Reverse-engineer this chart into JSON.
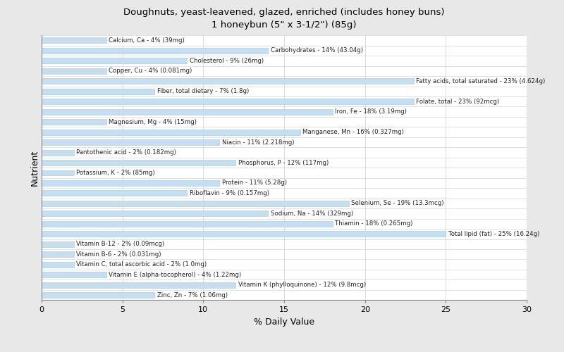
{
  "title": "Doughnuts, yeast-leavened, glazed, enriched (includes honey buns)\n1 honeybun (5\" x 3-1/2\") (85g)",
  "xlabel": "% Daily Value",
  "ylabel": "Nutrient",
  "xlim": [
    0,
    30
  ],
  "xticks": [
    0,
    5,
    10,
    15,
    20,
    25,
    30
  ],
  "bar_color": "#c5dff0",
  "bar_edge_color": "#a0c4e0",
  "background_color": "#e8e8e8",
  "plot_bg_color": "#ffffff",
  "nutrients": [
    {
      "label": "Calcium, Ca - 4% (39mg)",
      "value": 4
    },
    {
      "label": "Carbohydrates - 14% (43.04g)",
      "value": 14
    },
    {
      "label": "Cholesterol - 9% (26mg)",
      "value": 9
    },
    {
      "label": "Copper, Cu - 4% (0.081mg)",
      "value": 4
    },
    {
      "label": "Fatty acids, total saturated - 23% (4.624g)",
      "value": 23
    },
    {
      "label": "Fiber, total dietary - 7% (1.8g)",
      "value": 7
    },
    {
      "label": "Folate, total - 23% (92mcg)",
      "value": 23
    },
    {
      "label": "Iron, Fe - 18% (3.19mg)",
      "value": 18
    },
    {
      "label": "Magnesium, Mg - 4% (15mg)",
      "value": 4
    },
    {
      "label": "Manganese, Mn - 16% (0.327mg)",
      "value": 16
    },
    {
      "label": "Niacin - 11% (2.218mg)",
      "value": 11
    },
    {
      "label": "Pantothenic acid - 2% (0.182mg)",
      "value": 2
    },
    {
      "label": "Phosphorus, P - 12% (117mg)",
      "value": 12
    },
    {
      "label": "Potassium, K - 2% (85mg)",
      "value": 2
    },
    {
      "label": "Protein - 11% (5.28g)",
      "value": 11
    },
    {
      "label": "Riboflavin - 9% (0.157mg)",
      "value": 9
    },
    {
      "label": "Selenium, Se - 19% (13.3mcg)",
      "value": 19
    },
    {
      "label": "Sodium, Na - 14% (329mg)",
      "value": 14
    },
    {
      "label": "Thiamin - 18% (0.265mg)",
      "value": 18
    },
    {
      "label": "Total lipid (fat) - 25% (16.24g)",
      "value": 25
    },
    {
      "label": "Vitamin B-12 - 2% (0.09mcg)",
      "value": 2
    },
    {
      "label": "Vitamin B-6 - 2% (0.031mg)",
      "value": 2
    },
    {
      "label": "Vitamin C, total ascorbic acid - 2% (1.0mg)",
      "value": 2
    },
    {
      "label": "Vitamin E (alpha-tocopherol) - 4% (1.22mg)",
      "value": 4
    },
    {
      "label": "Vitamin K (phylloquinone) - 12% (9.8mcg)",
      "value": 12
    },
    {
      "label": "Zinc, Zn - 7% (1.06mg)",
      "value": 7
    }
  ]
}
